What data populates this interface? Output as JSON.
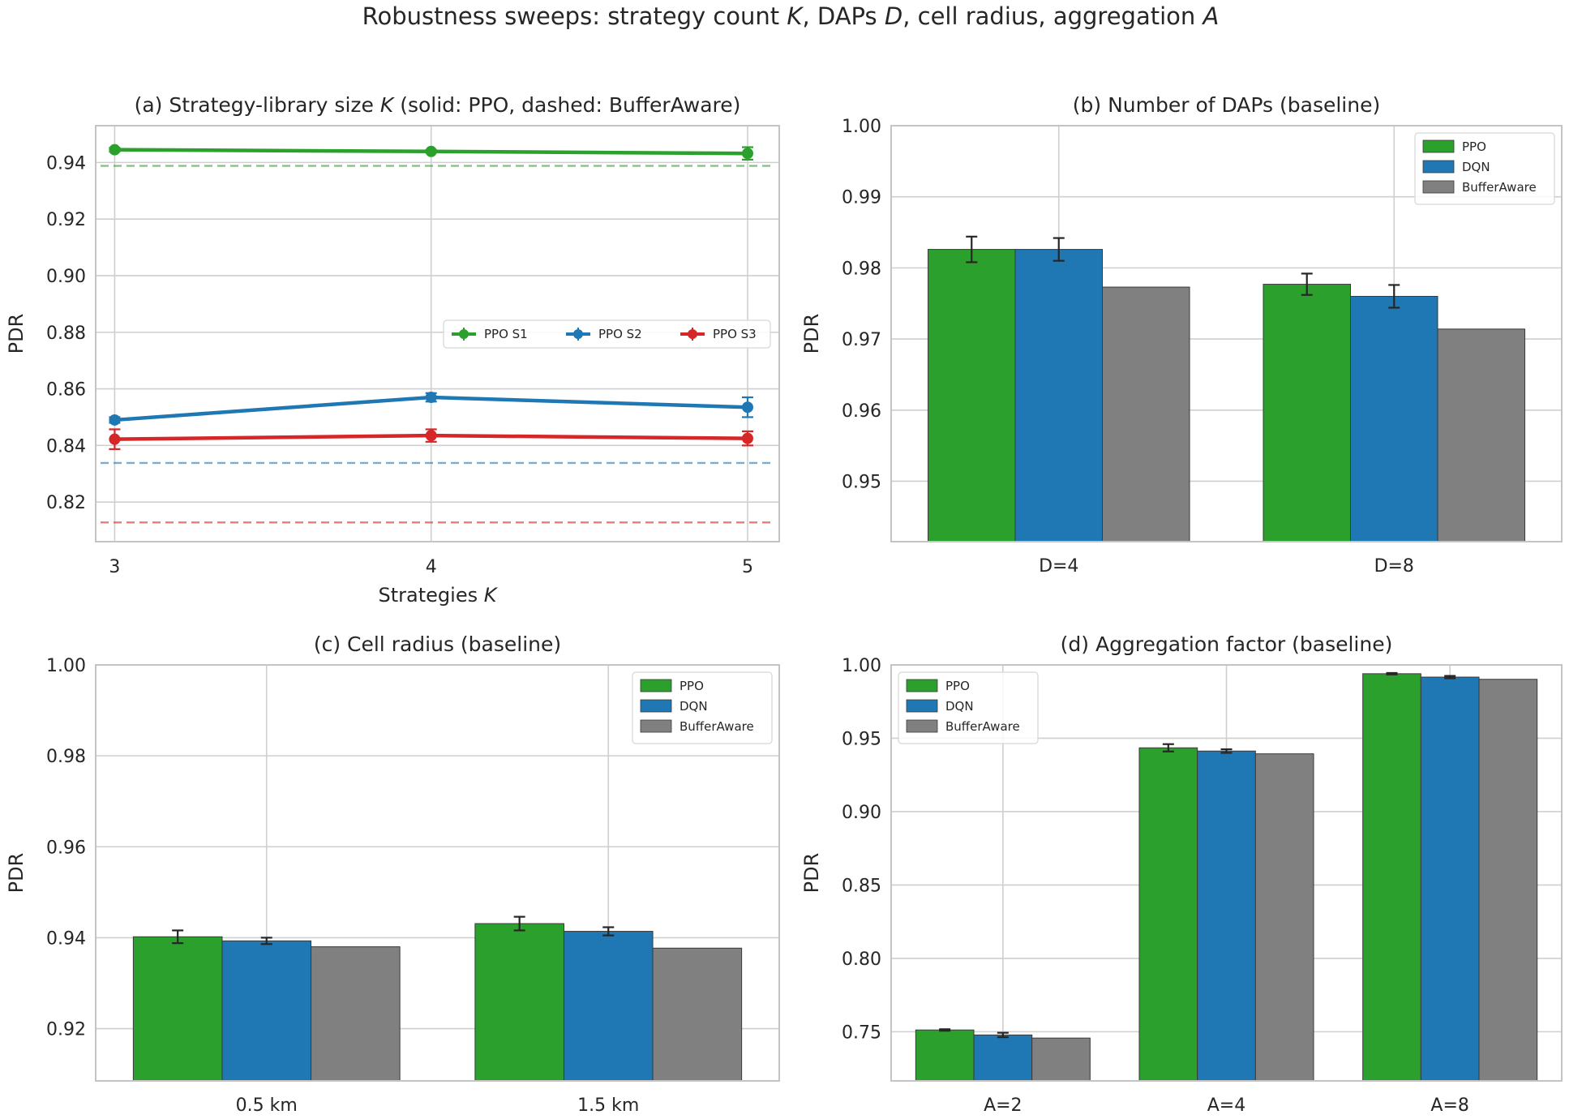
{
  "figure_title": "Robustness sweeps: strategy count K, DAPs D, cell radius, aggregation A",
  "colors": {
    "ppo": "#2ca02c",
    "dqn": "#1f77b4",
    "bufferaware": "#808080",
    "s1": "#2ca02c",
    "s2": "#1f77b4",
    "s3": "#d62728"
  },
  "chart_data": [
    {
      "id": "a",
      "type": "line",
      "title": "(a) Strategy-library size K (solid: PPO, dashed: BufferAware)",
      "xlabel": "Strategies K",
      "ylabel": "PDR",
      "x": [
        3,
        4,
        5
      ],
      "xlim": [
        2.94,
        5.1
      ],
      "ylim": [
        0.806,
        0.953
      ],
      "yticks": [
        0.82,
        0.84,
        0.86,
        0.88,
        0.9,
        0.92,
        0.94
      ],
      "ytick_labels": [
        "0.82",
        "0.84",
        "0.86",
        "0.88",
        "0.90",
        "0.92",
        "0.94"
      ],
      "xtick_labels": [
        "3",
        "4",
        "5"
      ],
      "grid": true,
      "legend": {
        "placement": "center-right",
        "columns": 3
      },
      "series": [
        {
          "name": "PPO S1",
          "color": "#2ca02c",
          "values": [
            0.9445,
            0.9439,
            0.9432
          ],
          "errors": [
            0.0007,
            0.0005,
            0.0022
          ],
          "baseline": 0.9388,
          "legend": true
        },
        {
          "name": "PPO S2",
          "color": "#1f77b4",
          "values": [
            0.849,
            0.857,
            0.8535
          ],
          "errors": [
            0.001,
            0.0015,
            0.0035
          ],
          "baseline": 0.8338,
          "legend": true
        },
        {
          "name": "PPO S3",
          "color": "#d62728",
          "values": [
            0.8422,
            0.8435,
            0.8425
          ],
          "errors": [
            0.0035,
            0.0022,
            0.0025
          ],
          "baseline": 0.8128,
          "legend": true
        }
      ]
    },
    {
      "id": "b",
      "type": "bar",
      "title": "(b) Number of DAPs (baseline)",
      "xlabel": "",
      "ylabel": "PDR",
      "categories": [
        "D=4",
        "D=8"
      ],
      "ylim": [
        0.9415,
        1.0
      ],
      "yticks": [
        0.95,
        0.96,
        0.97,
        0.98,
        0.99,
        1.0
      ],
      "ytick_labels": [
        "0.95",
        "0.96",
        "0.97",
        "0.98",
        "0.99",
        "1.00"
      ],
      "grid": true,
      "legend": {
        "placement": "top-right"
      },
      "series": [
        {
          "name": "PPO",
          "color": "#2ca02c",
          "values": [
            0.9826,
            0.9777
          ],
          "errors": [
            0.0018,
            0.0015
          ]
        },
        {
          "name": "DQN",
          "color": "#1f77b4",
          "values": [
            0.9826,
            0.976
          ],
          "errors": [
            0.0016,
            0.0016
          ]
        },
        {
          "name": "BufferAware",
          "color": "#808080",
          "values": [
            0.9773,
            0.9714
          ],
          "errors": [
            0,
            0
          ]
        }
      ]
    },
    {
      "id": "c",
      "type": "bar",
      "title": "(c) Cell radius (baseline)",
      "xlabel": "",
      "ylabel": "PDR",
      "categories": [
        "0.5 km",
        "1.5 km"
      ],
      "ylim": [
        0.9085,
        1.0
      ],
      "yticks": [
        0.92,
        0.94,
        0.96,
        0.98,
        1.0
      ],
      "ytick_labels": [
        "0.92",
        "0.94",
        "0.96",
        "0.98",
        "1.00"
      ],
      "grid": true,
      "legend": {
        "placement": "top-right"
      },
      "series": [
        {
          "name": "PPO",
          "color": "#2ca02c",
          "values": [
            0.9402,
            0.9431
          ],
          "errors": [
            0.0014,
            0.0015
          ]
        },
        {
          "name": "DQN",
          "color": "#1f77b4",
          "values": [
            0.9393,
            0.9414
          ],
          "errors": [
            0.0007,
            0.0009
          ]
        },
        {
          "name": "BufferAware",
          "color": "#808080",
          "values": [
            0.938,
            0.9377
          ],
          "errors": [
            0,
            0
          ]
        }
      ]
    },
    {
      "id": "d",
      "type": "bar",
      "title": "(d) Aggregation factor (baseline)",
      "xlabel": "",
      "ylabel": "PDR",
      "categories": [
        "A=2",
        "A=4",
        "A=8"
      ],
      "ylim": [
        0.7165,
        1.0
      ],
      "yticks": [
        0.75,
        0.8,
        0.85,
        0.9,
        0.95,
        1.0
      ],
      "ytick_labels": [
        "0.75",
        "0.80",
        "0.85",
        "0.90",
        "0.95",
        "1.00"
      ],
      "grid": true,
      "legend": {
        "placement": "top-left"
      },
      "series": [
        {
          "name": "PPO",
          "color": "#2ca02c",
          "values": [
            0.7512,
            0.9435,
            0.994
          ],
          "errors": [
            0.0005,
            0.0025,
            0.0005
          ]
        },
        {
          "name": "DQN",
          "color": "#1f77b4",
          "values": [
            0.7478,
            0.9413,
            0.9917
          ],
          "errors": [
            0.0015,
            0.0012,
            0.0008
          ]
        },
        {
          "name": "BufferAware",
          "color": "#808080",
          "values": [
            0.7457,
            0.9394,
            0.9902
          ],
          "errors": [
            0,
            0,
            0
          ]
        }
      ]
    }
  ]
}
